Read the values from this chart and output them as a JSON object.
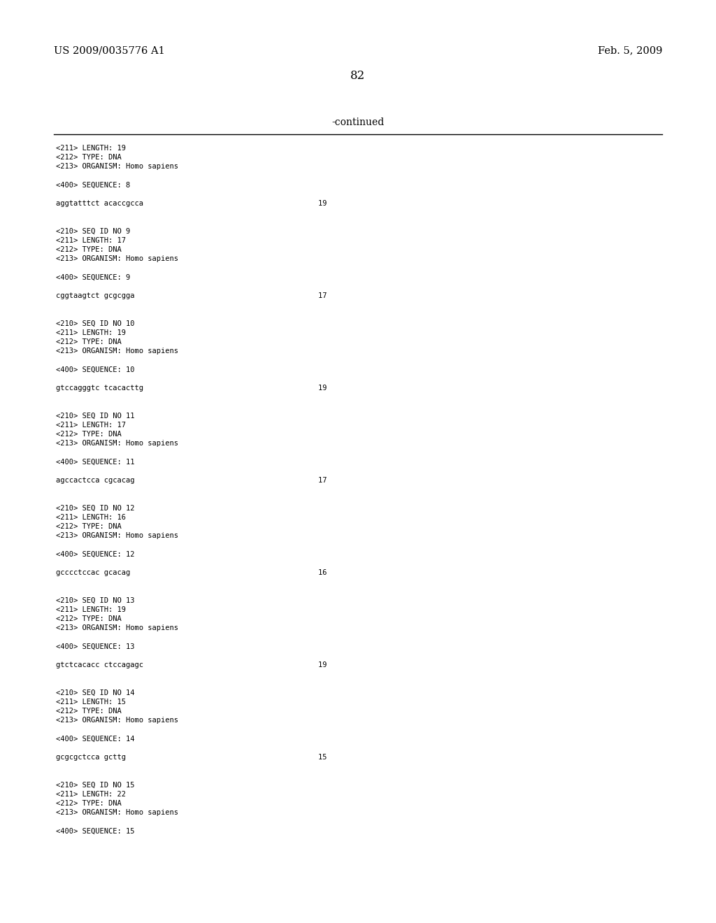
{
  "background_color": "#ffffff",
  "header_left": "US 2009/0035776 A1",
  "header_right": "Feb. 5, 2009",
  "page_number": "82",
  "continued_label": "-continued",
  "monospace_lines": [
    "<211> LENGTH: 19",
    "<212> TYPE: DNA",
    "<213> ORGANISM: Homo sapiens",
    "",
    "<400> SEQUENCE: 8",
    "",
    "aggtatttct acaccgcca                                        19",
    "",
    "",
    "<210> SEQ ID NO 9",
    "<211> LENGTH: 17",
    "<212> TYPE: DNA",
    "<213> ORGANISM: Homo sapiens",
    "",
    "<400> SEQUENCE: 9",
    "",
    "cggtaagtct gcgcgga                                          17",
    "",
    "",
    "<210> SEQ ID NO 10",
    "<211> LENGTH: 19",
    "<212> TYPE: DNA",
    "<213> ORGANISM: Homo sapiens",
    "",
    "<400> SEQUENCE: 10",
    "",
    "gtccagggtc tcacacttg                                        19",
    "",
    "",
    "<210> SEQ ID NO 11",
    "<211> LENGTH: 17",
    "<212> TYPE: DNA",
    "<213> ORGANISM: Homo sapiens",
    "",
    "<400> SEQUENCE: 11",
    "",
    "agccactcca cgcacag                                          17",
    "",
    "",
    "<210> SEQ ID NO 12",
    "<211> LENGTH: 16",
    "<212> TYPE: DNA",
    "<213> ORGANISM: Homo sapiens",
    "",
    "<400> SEQUENCE: 12",
    "",
    "gcccctccac gcacag                                           16",
    "",
    "",
    "<210> SEQ ID NO 13",
    "<211> LENGTH: 19",
    "<212> TYPE: DNA",
    "<213> ORGANISM: Homo sapiens",
    "",
    "<400> SEQUENCE: 13",
    "",
    "gtctcacacc ctccagagc                                        19",
    "",
    "",
    "<210> SEQ ID NO 14",
    "<211> LENGTH: 15",
    "<212> TYPE: DNA",
    "<213> ORGANISM: Homo sapiens",
    "",
    "<400> SEQUENCE: 14",
    "",
    "gcgcgctcca gcttg                                            15",
    "",
    "",
    "<210> SEQ ID NO 15",
    "<211> LENGTH: 22",
    "<212> TYPE: DNA",
    "<213> ORGANISM: Homo sapiens",
    "",
    "<400> SEQUENCE: 15"
  ],
  "mono_font_size": 7.5,
  "header_font_size": 10.5,
  "page_num_font_size": 12,
  "continued_font_size": 10,
  "text_color": "#000000",
  "line_color": "#000000"
}
